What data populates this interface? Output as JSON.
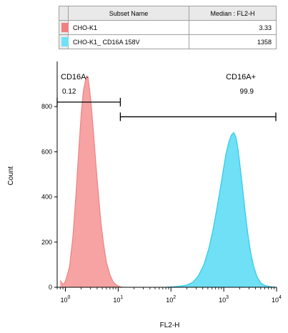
{
  "legend": {
    "headers": [
      "Subset Name",
      "Median : FL2-H"
    ],
    "rows": [
      {
        "name": "CHO-K1",
        "value": "3.33",
        "color": "#f08080"
      },
      {
        "name": "CHO-K1_ CD16A 158V",
        "value": "1358",
        "color": "#6fe0f5"
      }
    ]
  },
  "chart_data": {
    "type": "area",
    "title": "",
    "xlabel": "FL2-H",
    "ylabel": "Count",
    "x_scale": "log",
    "xlim": [
      0.7,
      10000
    ],
    "ylim": [
      0,
      1000
    ],
    "x_ticks": [
      {
        "value": 1,
        "base": "10",
        "exp": "0"
      },
      {
        "value": 10,
        "base": "10",
        "exp": "1"
      },
      {
        "value": 100,
        "base": "10",
        "exp": "2"
      },
      {
        "value": 1000,
        "base": "10",
        "exp": "3"
      },
      {
        "value": 10000,
        "base": "10",
        "exp": "4"
      }
    ],
    "y_ticks": [
      "0",
      "200",
      "400",
      "600",
      "800"
    ],
    "gates": [
      {
        "label": "CD16A-",
        "percent": "0.12",
        "from": 0.7,
        "to": 11,
        "y": 820
      },
      {
        "label": "CD16A+",
        "percent": "99.9",
        "from": 11,
        "to": 10000,
        "y": 755
      }
    ],
    "series": [
      {
        "name": "CHO-K1",
        "color": "#f08080",
        "fill": "#f7a3a3",
        "points": [
          [
            0.8,
            30
          ],
          [
            0.9,
            12
          ],
          [
            1.0,
            25
          ],
          [
            1.2,
            90
          ],
          [
            1.4,
            230
          ],
          [
            1.6,
            420
          ],
          [
            1.8,
            610
          ],
          [
            2.0,
            770
          ],
          [
            2.2,
            870
          ],
          [
            2.4,
            915
          ],
          [
            2.55,
            935
          ],
          [
            2.7,
            925
          ],
          [
            2.9,
            870
          ],
          [
            3.1,
            800
          ],
          [
            3.4,
            690
          ],
          [
            3.8,
            540
          ],
          [
            4.2,
            420
          ],
          [
            4.7,
            290
          ],
          [
            5.3,
            190
          ],
          [
            6.0,
            110
          ],
          [
            7.0,
            55
          ],
          [
            8.0,
            25
          ],
          [
            9.0,
            12
          ],
          [
            10,
            6
          ],
          [
            11,
            2
          ],
          [
            12,
            0
          ]
        ]
      },
      {
        "name": "CHO-K1_ CD16A 158V",
        "color": "#30c8ea",
        "fill": "#6fe0f5",
        "points": [
          [
            80,
            0
          ],
          [
            110,
            2
          ],
          [
            150,
            5
          ],
          [
            200,
            10
          ],
          [
            260,
            22
          ],
          [
            330,
            50
          ],
          [
            420,
            100
          ],
          [
            520,
            170
          ],
          [
            620,
            250
          ],
          [
            730,
            340
          ],
          [
            850,
            430
          ],
          [
            980,
            520
          ],
          [
            1100,
            590
          ],
          [
            1250,
            645
          ],
          [
            1400,
            675
          ],
          [
            1550,
            685
          ],
          [
            1700,
            665
          ],
          [
            1850,
            615
          ],
          [
            2000,
            550
          ],
          [
            2250,
            450
          ],
          [
            2500,
            350
          ],
          [
            2800,
            250
          ],
          [
            3200,
            160
          ],
          [
            3700,
            90
          ],
          [
            4300,
            45
          ],
          [
            5000,
            20
          ],
          [
            6000,
            8
          ],
          [
            7500,
            3
          ],
          [
            9500,
            0
          ]
        ]
      }
    ]
  }
}
